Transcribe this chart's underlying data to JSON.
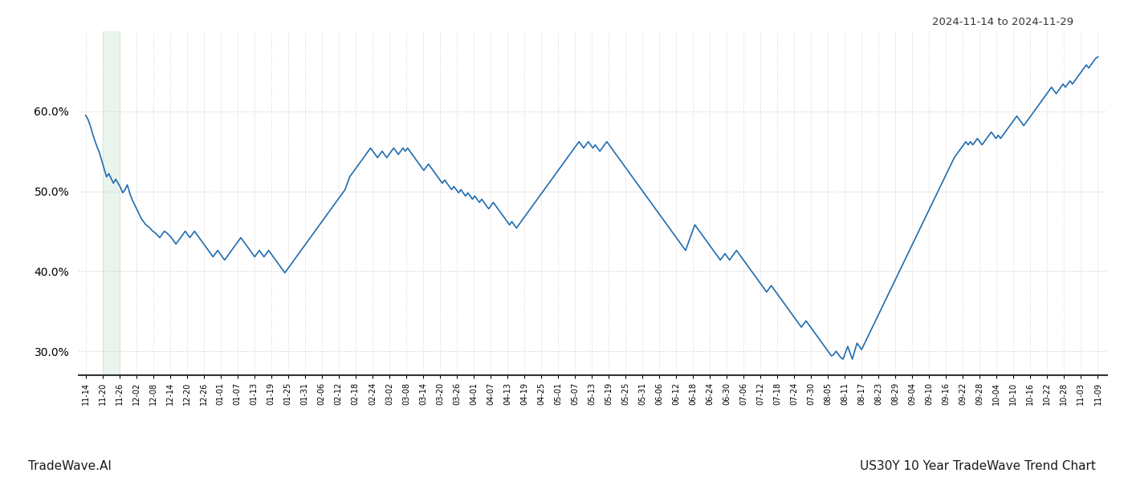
{
  "title_top_right": "2024-11-14 to 2024-11-29",
  "title_bottom_left": "TradeWave.AI",
  "title_bottom_right": "US30Y 10 Year TradeWave Trend Chart",
  "line_color": "#1f6cb0",
  "line_width": 1.2,
  "background_color": "#ffffff",
  "grid_color": "#cccccc",
  "highlight_color": "#d4edda",
  "highlight_alpha": 0.5,
  "ylim": [
    0.27,
    0.7
  ],
  "yticks": [
    0.3,
    0.4,
    0.5,
    0.6
  ],
  "xtick_labels": [
    "11-14",
    "11-20",
    "11-26",
    "12-02",
    "12-08",
    "12-14",
    "12-20",
    "12-26",
    "01-01",
    "01-07",
    "01-13",
    "01-19",
    "01-25",
    "01-31",
    "02-06",
    "02-12",
    "02-18",
    "02-24",
    "03-02",
    "03-08",
    "03-14",
    "03-20",
    "03-26",
    "04-01",
    "04-07",
    "04-13",
    "04-19",
    "04-25",
    "05-01",
    "05-07",
    "05-13",
    "05-19",
    "05-25",
    "05-31",
    "06-06",
    "06-12",
    "06-18",
    "06-24",
    "06-30",
    "07-06",
    "07-12",
    "07-18",
    "07-24",
    "07-30",
    "08-05",
    "08-11",
    "08-17",
    "08-23",
    "08-29",
    "09-04",
    "09-10",
    "09-16",
    "09-22",
    "09-28",
    "10-04",
    "10-10",
    "10-16",
    "10-22",
    "10-28",
    "11-03",
    "11-09"
  ],
  "values": [
    0.595,
    0.59,
    0.582,
    0.572,
    0.563,
    0.555,
    0.548,
    0.538,
    0.528,
    0.518,
    0.522,
    0.516,
    0.51,
    0.515,
    0.51,
    0.505,
    0.498,
    0.502,
    0.508,
    0.498,
    0.49,
    0.484,
    0.478,
    0.472,
    0.466,
    0.462,
    0.458,
    0.456,
    0.453,
    0.45,
    0.448,
    0.445,
    0.442,
    0.446,
    0.45,
    0.448,
    0.445,
    0.442,
    0.438,
    0.434,
    0.438,
    0.442,
    0.446,
    0.45,
    0.446,
    0.442,
    0.446,
    0.45,
    0.446,
    0.442,
    0.438,
    0.434,
    0.43,
    0.426,
    0.422,
    0.418,
    0.422,
    0.426,
    0.422,
    0.418,
    0.414,
    0.418,
    0.422,
    0.426,
    0.43,
    0.434,
    0.438,
    0.442,
    0.438,
    0.434,
    0.43,
    0.426,
    0.422,
    0.418,
    0.422,
    0.426,
    0.422,
    0.418,
    0.422,
    0.426,
    0.422,
    0.418,
    0.414,
    0.41,
    0.406,
    0.402,
    0.398,
    0.402,
    0.406,
    0.41,
    0.414,
    0.418,
    0.422,
    0.426,
    0.43,
    0.434,
    0.438,
    0.442,
    0.446,
    0.45,
    0.454,
    0.458,
    0.462,
    0.466,
    0.47,
    0.474,
    0.478,
    0.482,
    0.486,
    0.49,
    0.494,
    0.498,
    0.502,
    0.51,
    0.518,
    0.522,
    0.526,
    0.53,
    0.534,
    0.538,
    0.542,
    0.546,
    0.55,
    0.554,
    0.55,
    0.546,
    0.542,
    0.546,
    0.55,
    0.546,
    0.542,
    0.546,
    0.55,
    0.554,
    0.55,
    0.546,
    0.55,
    0.554,
    0.55,
    0.554,
    0.55,
    0.546,
    0.542,
    0.538,
    0.534,
    0.53,
    0.526,
    0.53,
    0.534,
    0.53,
    0.526,
    0.522,
    0.518,
    0.514,
    0.51,
    0.514,
    0.51,
    0.506,
    0.502,
    0.506,
    0.502,
    0.498,
    0.502,
    0.498,
    0.494,
    0.498,
    0.494,
    0.49,
    0.494,
    0.49,
    0.486,
    0.49,
    0.486,
    0.482,
    0.478,
    0.482,
    0.486,
    0.482,
    0.478,
    0.474,
    0.47,
    0.466,
    0.462,
    0.458,
    0.462,
    0.458,
    0.454,
    0.458,
    0.462,
    0.466,
    0.47,
    0.474,
    0.478,
    0.482,
    0.486,
    0.49,
    0.494,
    0.498,
    0.502,
    0.506,
    0.51,
    0.514,
    0.518,
    0.522,
    0.526,
    0.53,
    0.534,
    0.538,
    0.542,
    0.546,
    0.55,
    0.554,
    0.558,
    0.562,
    0.558,
    0.554,
    0.558,
    0.562,
    0.558,
    0.554,
    0.558,
    0.554,
    0.55,
    0.554,
    0.558,
    0.562,
    0.558,
    0.554,
    0.55,
    0.546,
    0.542,
    0.538,
    0.534,
    0.53,
    0.526,
    0.522,
    0.518,
    0.514,
    0.51,
    0.506,
    0.502,
    0.498,
    0.494,
    0.49,
    0.486,
    0.482,
    0.478,
    0.474,
    0.47,
    0.466,
    0.462,
    0.458,
    0.454,
    0.45,
    0.446,
    0.442,
    0.438,
    0.434,
    0.43,
    0.426,
    0.434,
    0.442,
    0.45,
    0.458,
    0.454,
    0.45,
    0.446,
    0.442,
    0.438,
    0.434,
    0.43,
    0.426,
    0.422,
    0.418,
    0.414,
    0.418,
    0.422,
    0.418,
    0.414,
    0.418,
    0.422,
    0.426,
    0.422,
    0.418,
    0.414,
    0.41,
    0.406,
    0.402,
    0.398,
    0.394,
    0.39,
    0.386,
    0.382,
    0.378,
    0.374,
    0.378,
    0.382,
    0.378,
    0.374,
    0.37,
    0.366,
    0.362,
    0.358,
    0.354,
    0.35,
    0.346,
    0.342,
    0.338,
    0.334,
    0.33,
    0.334,
    0.338,
    0.334,
    0.33,
    0.326,
    0.322,
    0.318,
    0.314,
    0.31,
    0.306,
    0.302,
    0.298,
    0.294,
    0.296,
    0.3,
    0.296,
    0.292,
    0.29,
    0.298,
    0.306,
    0.298,
    0.29,
    0.3,
    0.31,
    0.306,
    0.302,
    0.308,
    0.314,
    0.32,
    0.326,
    0.332,
    0.338,
    0.344,
    0.35,
    0.356,
    0.362,
    0.368,
    0.374,
    0.38,
    0.386,
    0.392,
    0.398,
    0.404,
    0.41,
    0.416,
    0.422,
    0.428,
    0.434,
    0.44,
    0.446,
    0.452,
    0.458,
    0.464,
    0.47,
    0.476,
    0.482,
    0.488,
    0.494,
    0.5,
    0.506,
    0.512,
    0.518,
    0.524,
    0.53,
    0.536,
    0.542,
    0.546,
    0.55,
    0.554,
    0.558,
    0.562,
    0.558,
    0.562,
    0.558,
    0.562,
    0.566,
    0.562,
    0.558,
    0.562,
    0.566,
    0.57,
    0.574,
    0.57,
    0.566,
    0.57,
    0.566,
    0.57,
    0.574,
    0.578,
    0.582,
    0.586,
    0.59,
    0.594,
    0.59,
    0.586,
    0.582,
    0.586,
    0.59,
    0.594,
    0.598,
    0.602,
    0.606,
    0.61,
    0.614,
    0.618,
    0.622,
    0.626,
    0.63,
    0.626,
    0.622,
    0.626,
    0.63,
    0.634,
    0.63,
    0.634,
    0.638,
    0.634,
    0.638,
    0.642,
    0.646,
    0.65,
    0.654,
    0.658,
    0.654,
    0.658,
    0.662,
    0.666,
    0.668
  ]
}
